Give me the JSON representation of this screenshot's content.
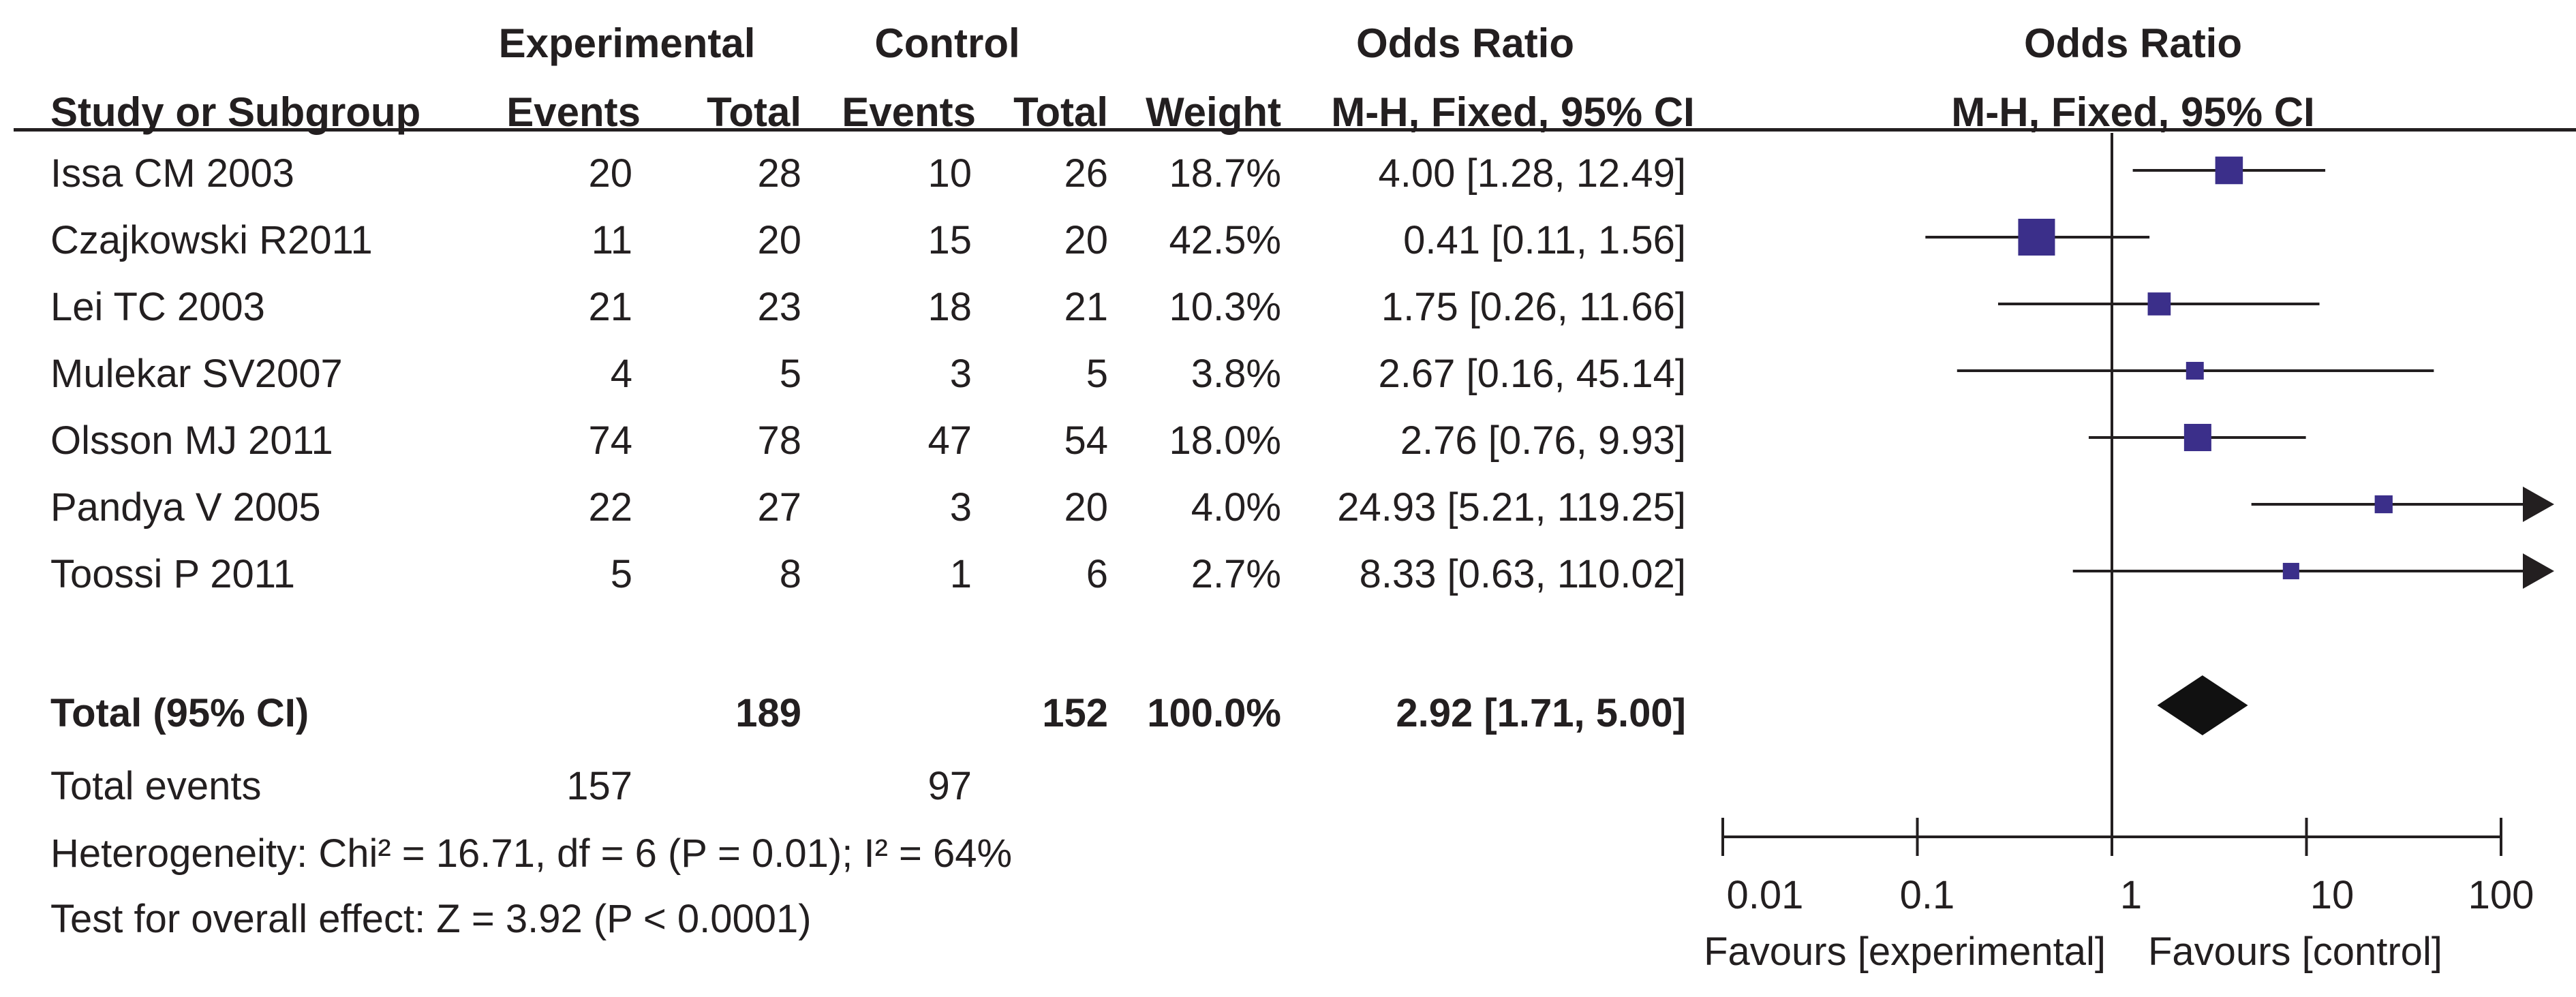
{
  "header": {
    "experimental": "Experimental",
    "control": "Control",
    "odds_ratio_table": "Odds Ratio",
    "odds_ratio_plot": "Odds Ratio",
    "study_col": "Study or Subgroup",
    "events_exp": "Events",
    "total_exp": "Total",
    "events_ctl": "Events",
    "total_ctl": "Total",
    "weight": "Weight",
    "method_table": "M-H, Fixed, 95% CI",
    "method_plot": "M-H, Fixed, 95% CI"
  },
  "studies": [
    {
      "name": "Issa CM 2003",
      "exp_events": "20",
      "exp_total": "28",
      "ctl_events": "10",
      "ctl_total": "26",
      "weight": "18.7%",
      "ci_text": "4.00 [1.28, 12.49]"
    },
    {
      "name": "Czajkowski R2011",
      "exp_events": "11",
      "exp_total": "20",
      "ctl_events": "15",
      "ctl_total": "20",
      "weight": "42.5%",
      "ci_text": "0.41 [0.11, 1.56]"
    },
    {
      "name": "Lei TC 2003",
      "exp_events": "21",
      "exp_total": "23",
      "ctl_events": "18",
      "ctl_total": "21",
      "weight": "10.3%",
      "ci_text": "1.75 [0.26, 11.66]"
    },
    {
      "name": "Mulekar SV2007",
      "exp_events": "4",
      "exp_total": "5",
      "ctl_events": "3",
      "ctl_total": "5",
      "weight": "3.8%",
      "ci_text": "2.67 [0.16, 45.14]"
    },
    {
      "name": "Olsson MJ  2011",
      "exp_events": "74",
      "exp_total": "78",
      "ctl_events": "47",
      "ctl_total": "54",
      "weight": "18.0%",
      "ci_text": "2.76 [0.76, 9.93]"
    },
    {
      "name": "Pandya V 2005",
      "exp_events": "22",
      "exp_total": "27",
      "ctl_events": "3",
      "ctl_total": "20",
      "weight": "4.0%",
      "ci_text": "24.93 [5.21, 119.25]"
    },
    {
      "name": "Toossi P 2011",
      "exp_events": "5",
      "exp_total": "8",
      "ctl_events": "1",
      "ctl_total": "6",
      "weight": "2.7%",
      "ci_text": "8.33 [0.63, 110.02]"
    }
  ],
  "total": {
    "label": "Total (95% CI)",
    "exp_total": "189",
    "ctl_total": "152",
    "weight": "100.0%",
    "ci_text": "2.92 [1.71, 5.00]"
  },
  "total_events": {
    "label": "Total events",
    "exp": "157",
    "ctl": "97"
  },
  "heterogeneity": "Heterogeneity: Chi² = 16.71, df = 6 (P = 0.01); I² = 64%",
  "overall_effect": "Test for overall effect: Z = 3.92 (P < 0.0001)",
  "axis": {
    "ticks": [
      "0.01",
      "0.1",
      "1",
      "10",
      "100"
    ],
    "favours_left": "Favours [experimental]",
    "favours_right": "Favours [control]"
  },
  "colors": {
    "square": "#3b2f8a",
    "text": "#231f20",
    "diamond": "#111111"
  },
  "chart_data": {
    "type": "forest",
    "scale": "log",
    "xlim": [
      0.01,
      100
    ],
    "ticks": [
      0.01,
      0.1,
      1,
      10,
      100
    ],
    "null_line": 1,
    "studies": [
      {
        "or": 4.0,
        "lo": 1.28,
        "hi": 12.49,
        "weight": 18.7
      },
      {
        "or": 0.41,
        "lo": 0.11,
        "hi": 1.56,
        "weight": 42.5
      },
      {
        "or": 1.75,
        "lo": 0.26,
        "hi": 11.66,
        "weight": 10.3
      },
      {
        "or": 2.67,
        "lo": 0.16,
        "hi": 45.14,
        "weight": 3.8
      },
      {
        "or": 2.76,
        "lo": 0.76,
        "hi": 9.93,
        "weight": 18.0
      },
      {
        "or": 24.93,
        "lo": 5.21,
        "hi": 119.25,
        "weight": 4.0
      },
      {
        "or": 8.33,
        "lo": 0.63,
        "hi": 110.02,
        "weight": 2.7
      }
    ],
    "pooled": {
      "or": 2.92,
      "lo": 1.71,
      "hi": 5.0
    }
  }
}
